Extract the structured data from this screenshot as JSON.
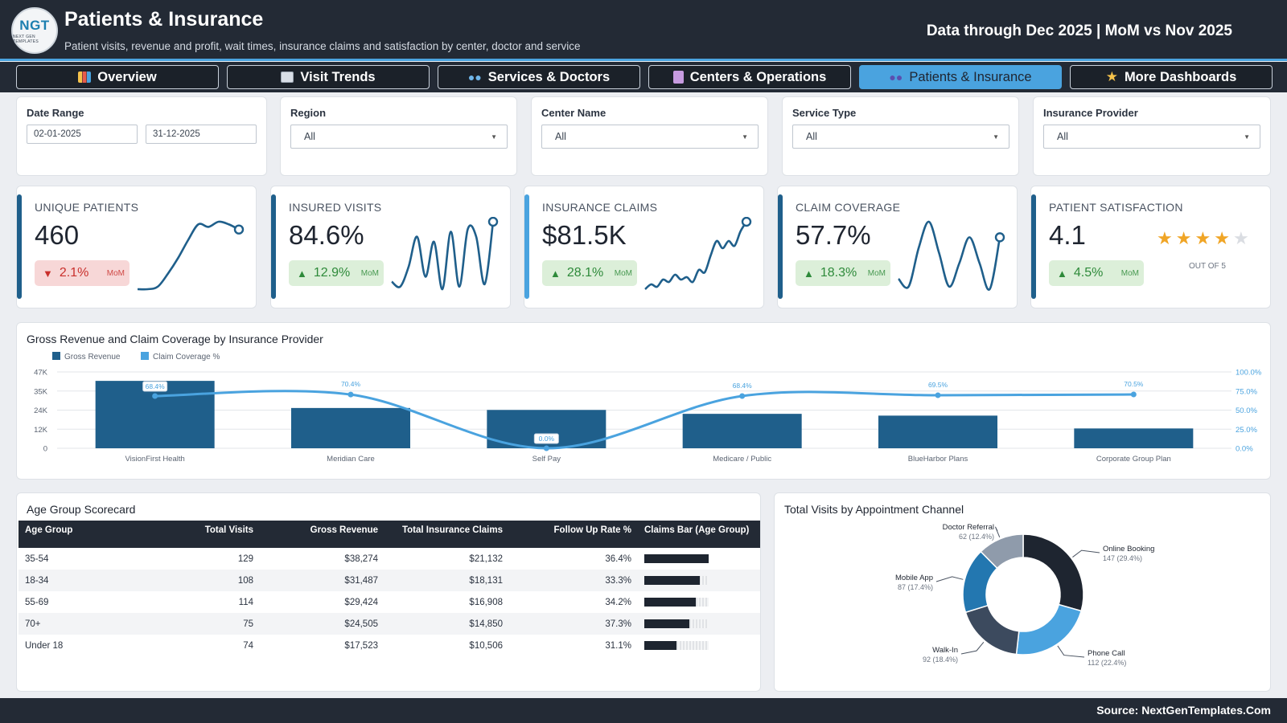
{
  "header": {
    "logo_text": "NGT",
    "logo_sub": "NEXT GEN TEMPLATES",
    "title": "Patients & Insurance",
    "subtitle": "Patient visits, revenue and profit, wait times, insurance claims and satisfaction by center, doctor and service",
    "data_note": "Data through Dec 2025 | MoM vs Nov 2025"
  },
  "nav": {
    "tabs": [
      {
        "label": "Overview",
        "icon": "bar-chart-icon",
        "icon_color": "#f4c24b",
        "active": false
      },
      {
        "label": "Visit Trends",
        "icon": "line-chart-icon",
        "icon_color": "#d9dfe7",
        "active": false
      },
      {
        "label": "Services & Doctors",
        "icon": "eyeglasses-icon",
        "icon_color": "#6fb6ea",
        "active": false
      },
      {
        "label": "Centers & Operations",
        "icon": "hospital-icon",
        "icon_color": "#c79be0",
        "active": false
      },
      {
        "label": "Patients & Insurance",
        "icon": "people-icon",
        "icon_color": "#5a4fb0",
        "active": true
      },
      {
        "label": "More Dashboards",
        "icon": "star-icon",
        "icon_color": "#f4c24b",
        "active": false
      }
    ]
  },
  "filters": {
    "date_range": {
      "label": "Date Range",
      "start": "02-01-2025",
      "end": "31-12-2025"
    },
    "region": {
      "label": "Region",
      "value": "All"
    },
    "center": {
      "label": "Center Name",
      "value": "All"
    },
    "service": {
      "label": "Service Type",
      "value": "All"
    },
    "insurance": {
      "label": "Insurance Provider",
      "value": "All"
    }
  },
  "kpis": [
    {
      "label": "UNIQUE PATIENTS",
      "value": "460",
      "delta": "2.1%",
      "direction": "down",
      "mom": "MoM",
      "spark": [
        2,
        2,
        3,
        8,
        14,
        21,
        27,
        26,
        28,
        27,
        25
      ]
    },
    {
      "label": "INSURED VISITS",
      "value": "84.6%",
      "delta": "12.9%",
      "direction": "up",
      "mom": "MoM",
      "spark": [
        6,
        4,
        12,
        24,
        8,
        22,
        3,
        26,
        4,
        27,
        24,
        5,
        30
      ]
    },
    {
      "label": "INSURANCE CLAIMS",
      "value": "$81.5K",
      "delta": "28.1%",
      "direction": "up",
      "mom": "MoM",
      "spark": [
        2,
        4,
        3,
        6,
        5,
        8,
        6,
        7,
        5,
        10,
        9,
        16,
        22,
        19,
        22,
        20,
        26,
        30
      ]
    },
    {
      "label": "CLAIM COVERAGE",
      "value": "57.7%",
      "delta": "18.3%",
      "direction": "up",
      "mom": "MoM",
      "spark": [
        6,
        3,
        18,
        28,
        16,
        3,
        12,
        22,
        12,
        2,
        22
      ]
    },
    {
      "label": "PATIENT SATISFACTION",
      "value": "4.1",
      "delta": "4.5%",
      "direction": "up",
      "mom": "MoM",
      "rating": 4.1,
      "out_of": "OUT OF 5"
    }
  ],
  "revenue_chart": {
    "title": "Gross Revenue and Claim Coverage by Insurance Provider"
  },
  "chart_data": [
    {
      "type": "bar",
      "title": "Gross Revenue and Claim Coverage by Insurance Provider",
      "categories": [
        "VisionFirst Health",
        "Meridian Care",
        "Self Pay",
        "Medicare / Public",
        "BlueHarbor Plans",
        "Corporate Group Plan"
      ],
      "series": [
        {
          "name": "Gross Revenue",
          "kind": "bar",
          "color": "#1f5f8b",
          "values": [
            41500,
            24800,
            23600,
            21200,
            20100,
            12200
          ],
          "axis": "left"
        },
        {
          "name": "Claim Coverage %",
          "kind": "line",
          "color": "#4aa3df",
          "values": [
            68.4,
            70.4,
            0.0,
            68.4,
            69.5,
            70.5
          ],
          "labels": [
            "68.4%",
            "70.4%",
            "0.0%",
            "68.4%",
            "69.5%",
            "70.5%"
          ],
          "axis": "right"
        }
      ],
      "y_left_ticks": [
        "47K",
        "35K",
        "24K",
        "12K",
        "0"
      ],
      "y_left_max": 47000,
      "y_right_ticks": [
        "100.0%",
        "75.0%",
        "50.0%",
        "25.0%",
        "0.0%"
      ],
      "y_right_max": 100,
      "legend": "top-left",
      "grid": true
    },
    {
      "type": "pie",
      "title": "Total Visits by Appointment Channel",
      "slices": [
        {
          "label": "Online Booking",
          "value": 147,
          "pct": "147 (29.4%)",
          "color": "#1e2530"
        },
        {
          "label": "Phone Call",
          "value": 112,
          "pct": "112 (22.4%)",
          "color": "#4aa3df"
        },
        {
          "label": "Walk-In",
          "value": 92,
          "pct": "92 (18.4%)",
          "color": "#3c4a5e"
        },
        {
          "label": "Mobile App",
          "value": 87,
          "pct": "87 (17.4%)",
          "color": "#2377b0"
        },
        {
          "label": "Doctor Referral",
          "value": 62,
          "pct": "62 (12.4%)",
          "color": "#8f9bab"
        }
      ]
    }
  ],
  "scorecard": {
    "title": "Age Group Scorecard",
    "columns": [
      "Age Group",
      "Total Visits",
      "Gross Revenue",
      "Total Insurance Claims",
      "Follow Up Rate %",
      "Claims Bar (Age Group)"
    ],
    "rows": [
      {
        "group": "35-54",
        "visits": "129",
        "revenue": "$38,274",
        "claims": "$21,132",
        "followup": "36.4%",
        "bar": 1.0
      },
      {
        "group": "18-34",
        "visits": "108",
        "revenue": "$31,487",
        "claims": "$18,131",
        "followup": "33.3%",
        "bar": 0.86
      },
      {
        "group": "55-69",
        "visits": "114",
        "revenue": "$29,424",
        "claims": "$16,908",
        "followup": "34.2%",
        "bar": 0.8
      },
      {
        "group": "70+",
        "visits": "75",
        "revenue": "$24,505",
        "claims": "$14,850",
        "followup": "37.3%",
        "bar": 0.7
      },
      {
        "group": "Under 18",
        "visits": "74",
        "revenue": "$17,523",
        "claims": "$10,506",
        "followup": "31.1%",
        "bar": 0.5
      }
    ]
  },
  "channel_chart": {
    "title": "Total Visits by Appointment Channel"
  },
  "footer": {
    "source": "Source: NextGenTemplates.Com"
  }
}
